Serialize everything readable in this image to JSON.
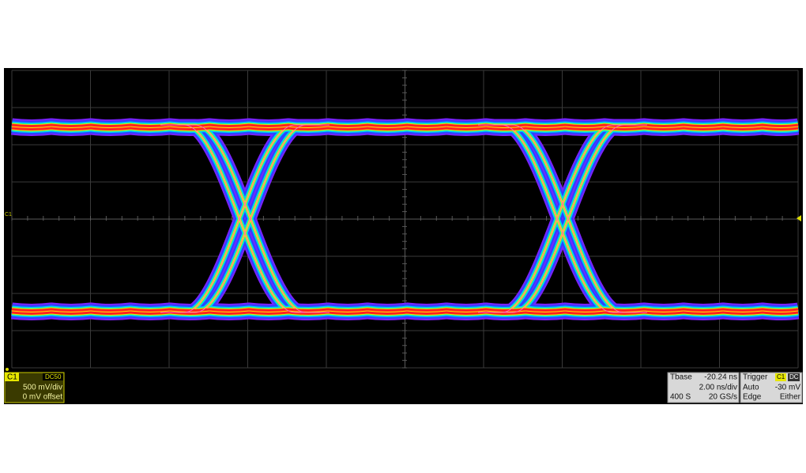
{
  "screen": {
    "channel_marker": "C1"
  },
  "channel_panel": {
    "channel": "C1",
    "coupling": "DC50",
    "scale": "500 mV/div",
    "offset": "0 mV offset"
  },
  "timebase_panel": {
    "label": "Tbase",
    "delay": "-20.24 ns",
    "scale": "2.00 ns/div",
    "samples": "400 S",
    "rate": "20 GS/s"
  },
  "trigger_panel": {
    "label": "Trigger",
    "source": "C1",
    "coupling": "DC",
    "mode": "Auto",
    "level": "-30 mV",
    "type": "Edge",
    "slope": "Either"
  }
}
